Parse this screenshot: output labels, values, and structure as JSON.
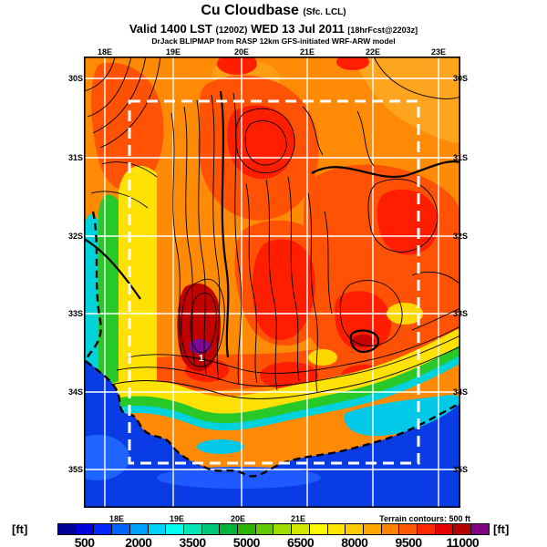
{
  "header": {
    "title_main": "Cu Cloudbase",
    "title_qualifier": "(Sfc. LCL)",
    "valid_prefix": "Valid 1400 LST",
    "valid_utc": "(1200Z)",
    "valid_date": "WED 13 Jul 2011",
    "valid_fcst": "[18hrFcst@2203z]",
    "model_line": "DrJack BLIPMAP from RASP 12km GFS-initiated WRF-ARW model"
  },
  "map": {
    "lon_labels_top": [
      "18E",
      "19E",
      "20E",
      "21E",
      "22E",
      "23E"
    ],
    "lon_labels_bottom": [
      "18E",
      "19E",
      "20E",
      "21E"
    ],
    "lat_labels_left": [
      "30S",
      "31S",
      "32S",
      "33S",
      "34S",
      "35S"
    ],
    "lat_labels_right": [
      "30S",
      "31S",
      "32S",
      "33S",
      "34S",
      "35S"
    ],
    "terrain_note": "Terrain contours: 500 ft",
    "site_marker_label": "1"
  },
  "colorbar": {
    "unit_left": "[ft]",
    "unit_right": "[ft]",
    "tick_labels": [
      "500",
      "2000",
      "3500",
      "5000",
      "6500",
      "8000",
      "9500",
      "11000"
    ],
    "tick_positions_pct": [
      6.25,
      18.75,
      31.25,
      43.75,
      56.25,
      68.75,
      81.25,
      93.75
    ],
    "segment_colors": [
      "#000096",
      "#0000DC",
      "#0028FF",
      "#0064FF",
      "#00A0FF",
      "#00D2FF",
      "#00FFF0",
      "#00E6B4",
      "#00C878",
      "#00B43C",
      "#28B400",
      "#64C800",
      "#A0DC00",
      "#D2E600",
      "#FAFA00",
      "#FFE600",
      "#FFC800",
      "#FFA500",
      "#FF8200",
      "#FF5A00",
      "#FF2800",
      "#E60000",
      "#B40000",
      "#820082"
    ]
  },
  "colors": {
    "land_base": "#FF8A05",
    "ocean": "#0A3CE6",
    "grid": "#FFFFFF",
    "contour": "#000000",
    "domain_box": "#FFFFFF"
  }
}
